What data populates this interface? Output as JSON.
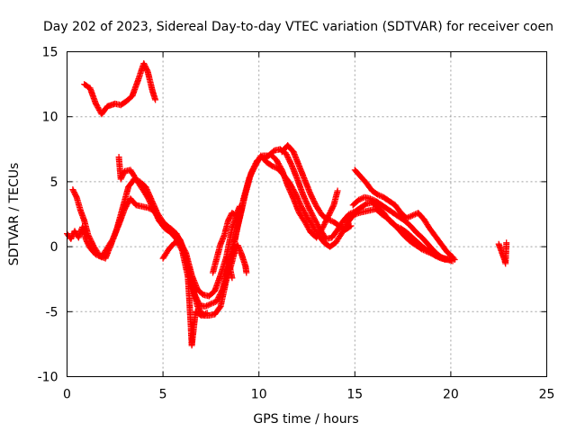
{
  "chart_data": {
    "type": "scatter",
    "title": "Day 202 of 2023, Sidereal Day-to-day VTEC variation (SDTVAR) for receiver coen",
    "xlabel": "GPS time / hours",
    "ylabel": "SDTVAR / TECUs",
    "xlim": [
      0,
      25
    ],
    "ylim": [
      -10,
      15
    ],
    "xticks": [
      0,
      5,
      10,
      15,
      20,
      25
    ],
    "yticks": [
      -10,
      -5,
      0,
      5,
      10,
      15
    ],
    "xtick_labels": [
      "0",
      "5",
      "10",
      "15",
      "20",
      "25"
    ],
    "ytick_labels": [
      "-10",
      "-5",
      "0",
      "5",
      "10",
      "15"
    ],
    "grid": true,
    "marker": "+",
    "color": "#ff0000",
    "series": [
      {
        "name": "s1",
        "points": [
          [
            0.9,
            12.5
          ],
          [
            1.2,
            12.2
          ],
          [
            1.5,
            11
          ],
          [
            1.8,
            10.2
          ],
          [
            2.1,
            10.8
          ],
          [
            2.5,
            11
          ],
          [
            2.8,
            10.9
          ],
          [
            3.1,
            11.2
          ],
          [
            3.4,
            11.6
          ],
          [
            3.7,
            12.8
          ],
          [
            4.0,
            14.1
          ],
          [
            4.2,
            13.5
          ],
          [
            4.45,
            12
          ],
          [
            4.6,
            11.3
          ]
        ]
      },
      {
        "name": "s2",
        "points": [
          [
            0,
            1
          ],
          [
            0.2,
            0.6
          ],
          [
            0.4,
            1.2
          ],
          [
            0.6,
            0.7
          ],
          [
            0.8,
            1.5
          ],
          [
            1.0,
            0.5
          ],
          [
            1.2,
            -0.1
          ],
          [
            1.5,
            -0.6
          ],
          [
            1.8,
            -0.8
          ],
          [
            2.1,
            -0.1
          ],
          [
            2.4,
            0.6
          ],
          [
            2.7,
            1.7
          ],
          [
            3.0,
            2.9
          ],
          [
            3.3,
            3.7
          ],
          [
            3.6,
            3.2
          ],
          [
            3.9,
            3.1
          ],
          [
            4.2,
            3.0
          ],
          [
            4.5,
            2.8
          ],
          [
            4.8,
            2.2
          ],
          [
            5.1,
            1.6
          ],
          [
            5.4,
            1.4
          ],
          [
            5.7,
            1.0
          ],
          [
            6.0,
            0.1
          ],
          [
            6.3,
            -1.6
          ],
          [
            6.6,
            -3.5
          ],
          [
            6.9,
            -4.5
          ],
          [
            7.2,
            -4.6
          ],
          [
            7.5,
            -4.4
          ],
          [
            7.8,
            -4.2
          ],
          [
            8.1,
            -3.3
          ],
          [
            8.4,
            -1.6
          ],
          [
            8.7,
            0.4
          ],
          [
            9.0,
            2.2
          ],
          [
            9.3,
            4.1
          ],
          [
            9.6,
            5.7
          ],
          [
            9.9,
            6.6
          ],
          [
            10.2,
            7.0
          ],
          [
            10.5,
            7.0
          ],
          [
            10.8,
            7.4
          ],
          [
            11.1,
            7.5
          ],
          [
            11.4,
            7.2
          ],
          [
            11.7,
            6.3
          ],
          [
            12.0,
            5.2
          ],
          [
            12.3,
            4.0
          ],
          [
            12.6,
            3.0
          ],
          [
            12.9,
            2.1
          ],
          [
            13.2,
            1.3
          ],
          [
            13.5,
            0.6
          ],
          [
            13.8,
            0.7
          ],
          [
            14.1,
            1.3
          ],
          [
            14.4,
            2.0
          ],
          [
            14.7,
            2.5
          ],
          [
            15.0,
            2.7
          ],
          [
            15.3,
            3.0
          ],
          [
            15.6,
            3.3
          ],
          [
            15.9,
            3.4
          ],
          [
            16.2,
            3.0
          ],
          [
            16.5,
            2.6
          ],
          [
            16.8,
            2.0
          ],
          [
            17.1,
            1.6
          ],
          [
            17.4,
            1.4
          ],
          [
            17.7,
            1.1
          ],
          [
            18.0,
            0.7
          ],
          [
            18.3,
            0.3
          ],
          [
            18.6,
            -0.1
          ],
          [
            18.9,
            -0.4
          ],
          [
            19.2,
            -0.7
          ],
          [
            19.5,
            -0.9
          ],
          [
            19.8,
            -1.0
          ],
          [
            20.1,
            -1.1
          ]
        ]
      },
      {
        "name": "s3",
        "points": [
          [
            0.3,
            4.4
          ],
          [
            0.5,
            3.8
          ],
          [
            0.7,
            2.8
          ],
          [
            0.9,
            2.0
          ],
          [
            1.1,
            0.9
          ],
          [
            1.4,
            0.0
          ],
          [
            1.7,
            -0.7
          ],
          [
            2.0,
            -0.9
          ],
          [
            2.3,
            0.2
          ],
          [
            2.6,
            1.4
          ],
          [
            2.9,
            3.0
          ],
          [
            3.2,
            4.6
          ],
          [
            3.5,
            5.2
          ],
          [
            3.8,
            5.0
          ],
          [
            4.1,
            4.6
          ],
          [
            4.4,
            3.6
          ],
          [
            4.7,
            2.6
          ],
          [
            5.0,
            1.9
          ],
          [
            5.3,
            1.5
          ],
          [
            5.6,
            1.1
          ],
          [
            5.9,
            0.5
          ],
          [
            6.2,
            -0.9
          ],
          [
            6.5,
            -2.9
          ],
          [
            6.8,
            -4.6
          ],
          [
            7.1,
            -5.3
          ],
          [
            7.4,
            -5.3
          ],
          [
            7.7,
            -5.2
          ],
          [
            8.0,
            -4.6
          ],
          [
            8.3,
            -2.6
          ],
          [
            8.6,
            -0.6
          ],
          [
            8.9,
            1.6
          ],
          [
            9.2,
            3.7
          ],
          [
            9.5,
            5.3
          ],
          [
            9.8,
            6.2
          ],
          [
            10.1,
            7.0
          ],
          [
            10.4,
            6.5
          ],
          [
            10.7,
            6.2
          ],
          [
            11.0,
            6.0
          ],
          [
            11.3,
            5.5
          ],
          [
            11.6,
            4.9
          ],
          [
            11.9,
            4.1
          ],
          [
            12.2,
            3.1
          ],
          [
            12.5,
            2.3
          ],
          [
            12.8,
            1.6
          ],
          [
            13.1,
            0.9
          ],
          [
            13.4,
            0.3
          ],
          [
            13.7,
            0.0
          ],
          [
            14.0,
            0.3
          ],
          [
            14.3,
            1.0
          ],
          [
            14.6,
            1.8
          ],
          [
            14.9,
            2.4
          ],
          [
            15.2,
            2.6
          ],
          [
            15.5,
            2.7
          ],
          [
            15.8,
            2.8
          ],
          [
            16.1,
            2.9
          ],
          [
            16.4,
            2.5
          ],
          [
            16.7,
            2.2
          ],
          [
            17.0,
            1.8
          ],
          [
            17.3,
            1.3
          ],
          [
            17.6,
            0.8
          ],
          [
            17.9,
            0.4
          ],
          [
            18.2,
            0.1
          ],
          [
            18.5,
            -0.2
          ],
          [
            18.8,
            -0.4
          ],
          [
            19.1,
            -0.6
          ],
          [
            19.4,
            -0.8
          ],
          [
            19.7,
            -0.9
          ],
          [
            20.0,
            -1.0
          ]
        ]
      },
      {
        "name": "s4",
        "points": [
          [
            2.7,
            6.9
          ],
          [
            2.8,
            5.2
          ],
          [
            3.0,
            5.8
          ],
          [
            3.3,
            5.9
          ],
          [
            3.6,
            5.2
          ],
          [
            3.9,
            4.5
          ],
          [
            4.2,
            3.8
          ],
          [
            4.5,
            2.9
          ],
          [
            4.8,
            2.0
          ],
          [
            5.1,
            1.4
          ],
          [
            5.4,
            1.1
          ],
          [
            5.7,
            0.6
          ],
          [
            6.0,
            -0.3
          ],
          [
            6.3,
            -2.3
          ],
          [
            6.45,
            -6.0
          ],
          [
            6.5,
            -7.6
          ],
          [
            6.7,
            -5.0
          ],
          [
            7.0,
            -5.3
          ],
          [
            7.3,
            -5.1
          ]
        ]
      },
      {
        "name": "s5",
        "points": [
          [
            5.0,
            -0.9
          ],
          [
            5.3,
            -0.2
          ],
          [
            5.6,
            0.3
          ],
          [
            5.9,
            0.4
          ],
          [
            6.2,
            -0.5
          ],
          [
            6.5,
            -2.2
          ],
          [
            6.8,
            -3.3
          ],
          [
            7.1,
            -3.7
          ],
          [
            7.4,
            -3.8
          ],
          [
            7.7,
            -3.4
          ],
          [
            8.0,
            -2.2
          ],
          [
            8.3,
            -0.8
          ],
          [
            8.6,
            1.4
          ],
          [
            8.9,
            2.6
          ]
        ]
      },
      {
        "name": "s6",
        "points": [
          [
            7.6,
            -2.0
          ],
          [
            7.8,
            -0.9
          ],
          [
            8.0,
            0.2
          ],
          [
            8.2,
            0.9
          ],
          [
            8.4,
            2.0
          ],
          [
            8.6,
            2.6
          ],
          [
            8.8,
            2.4
          ],
          [
            9.0,
            3.1
          ]
        ]
      },
      {
        "name": "s7",
        "points": [
          [
            8.5,
            -1.7
          ],
          [
            8.7,
            -0.6
          ],
          [
            8.9,
            0.1
          ],
          [
            9.1,
            -0.6
          ],
          [
            9.3,
            -1.5
          ],
          [
            9.35,
            -2.0
          ]
        ]
      },
      {
        "name": "s8",
        "points": [
          [
            8.2,
            -3.0
          ],
          [
            8.4,
            -1.0
          ],
          [
            8.6,
            -2.4
          ]
        ]
      },
      {
        "name": "s9",
        "points": [
          [
            10.3,
            6.8
          ],
          [
            10.6,
            7.1
          ],
          [
            10.9,
            6.7
          ],
          [
            11.2,
            5.9
          ],
          [
            11.5,
            4.7
          ],
          [
            11.8,
            3.7
          ],
          [
            12.1,
            2.6
          ],
          [
            12.4,
            1.9
          ],
          [
            12.7,
            1.1
          ],
          [
            13.0,
            0.7
          ],
          [
            13.3,
            1.4
          ],
          [
            13.6,
            2.3
          ],
          [
            13.9,
            3.2
          ],
          [
            14.1,
            4.3
          ]
        ]
      },
      {
        "name": "s10",
        "points": [
          [
            11.2,
            7.3
          ],
          [
            11.5,
            7.8
          ],
          [
            11.8,
            7.3
          ],
          [
            12.1,
            6.2
          ],
          [
            12.4,
            5.1
          ],
          [
            12.7,
            4.0
          ],
          [
            13.0,
            3.1
          ],
          [
            13.3,
            2.4
          ],
          [
            13.6,
            2.1
          ],
          [
            13.9,
            1.9
          ],
          [
            14.2,
            1.6
          ],
          [
            14.5,
            1.3
          ],
          [
            14.8,
            1.6
          ]
        ]
      },
      {
        "name": "s11",
        "points": [
          [
            15.0,
            5.9
          ],
          [
            15.3,
            5.4
          ],
          [
            15.6,
            4.9
          ],
          [
            15.9,
            4.3
          ],
          [
            16.2,
            4.0
          ],
          [
            16.5,
            3.8
          ],
          [
            16.8,
            3.5
          ],
          [
            17.1,
            3.2
          ],
          [
            17.4,
            2.6
          ],
          [
            17.7,
            2.2
          ],
          [
            18.0,
            2.4
          ],
          [
            18.3,
            2.6
          ],
          [
            18.6,
            2.1
          ],
          [
            18.9,
            1.4
          ],
          [
            19.2,
            0.8
          ],
          [
            19.5,
            0.2
          ],
          [
            19.8,
            -0.4
          ],
          [
            20.1,
            -0.8
          ],
          [
            20.2,
            -1.0
          ]
        ]
      },
      {
        "name": "s12",
        "points": [
          [
            14.9,
            3.2
          ],
          [
            15.2,
            3.6
          ],
          [
            15.5,
            3.8
          ],
          [
            15.8,
            3.7
          ],
          [
            16.1,
            3.5
          ],
          [
            16.4,
            3.2
          ],
          [
            16.7,
            2.9
          ],
          [
            17.0,
            2.6
          ],
          [
            17.3,
            2.3
          ],
          [
            17.6,
            2.0
          ],
          [
            17.9,
            1.6
          ],
          [
            18.2,
            1.1
          ],
          [
            18.5,
            0.7
          ],
          [
            18.8,
            0.2
          ],
          [
            19.1,
            -0.3
          ],
          [
            19.4,
            -0.7
          ],
          [
            19.7,
            -1.0
          ]
        ]
      },
      {
        "name": "s13",
        "points": [
          [
            22.5,
            0.2
          ],
          [
            22.6,
            -0.2
          ],
          [
            22.7,
            -0.6
          ],
          [
            22.8,
            -1.0
          ],
          [
            22.85,
            -1.3
          ],
          [
            22.9,
            0.3
          ]
        ]
      }
    ]
  }
}
